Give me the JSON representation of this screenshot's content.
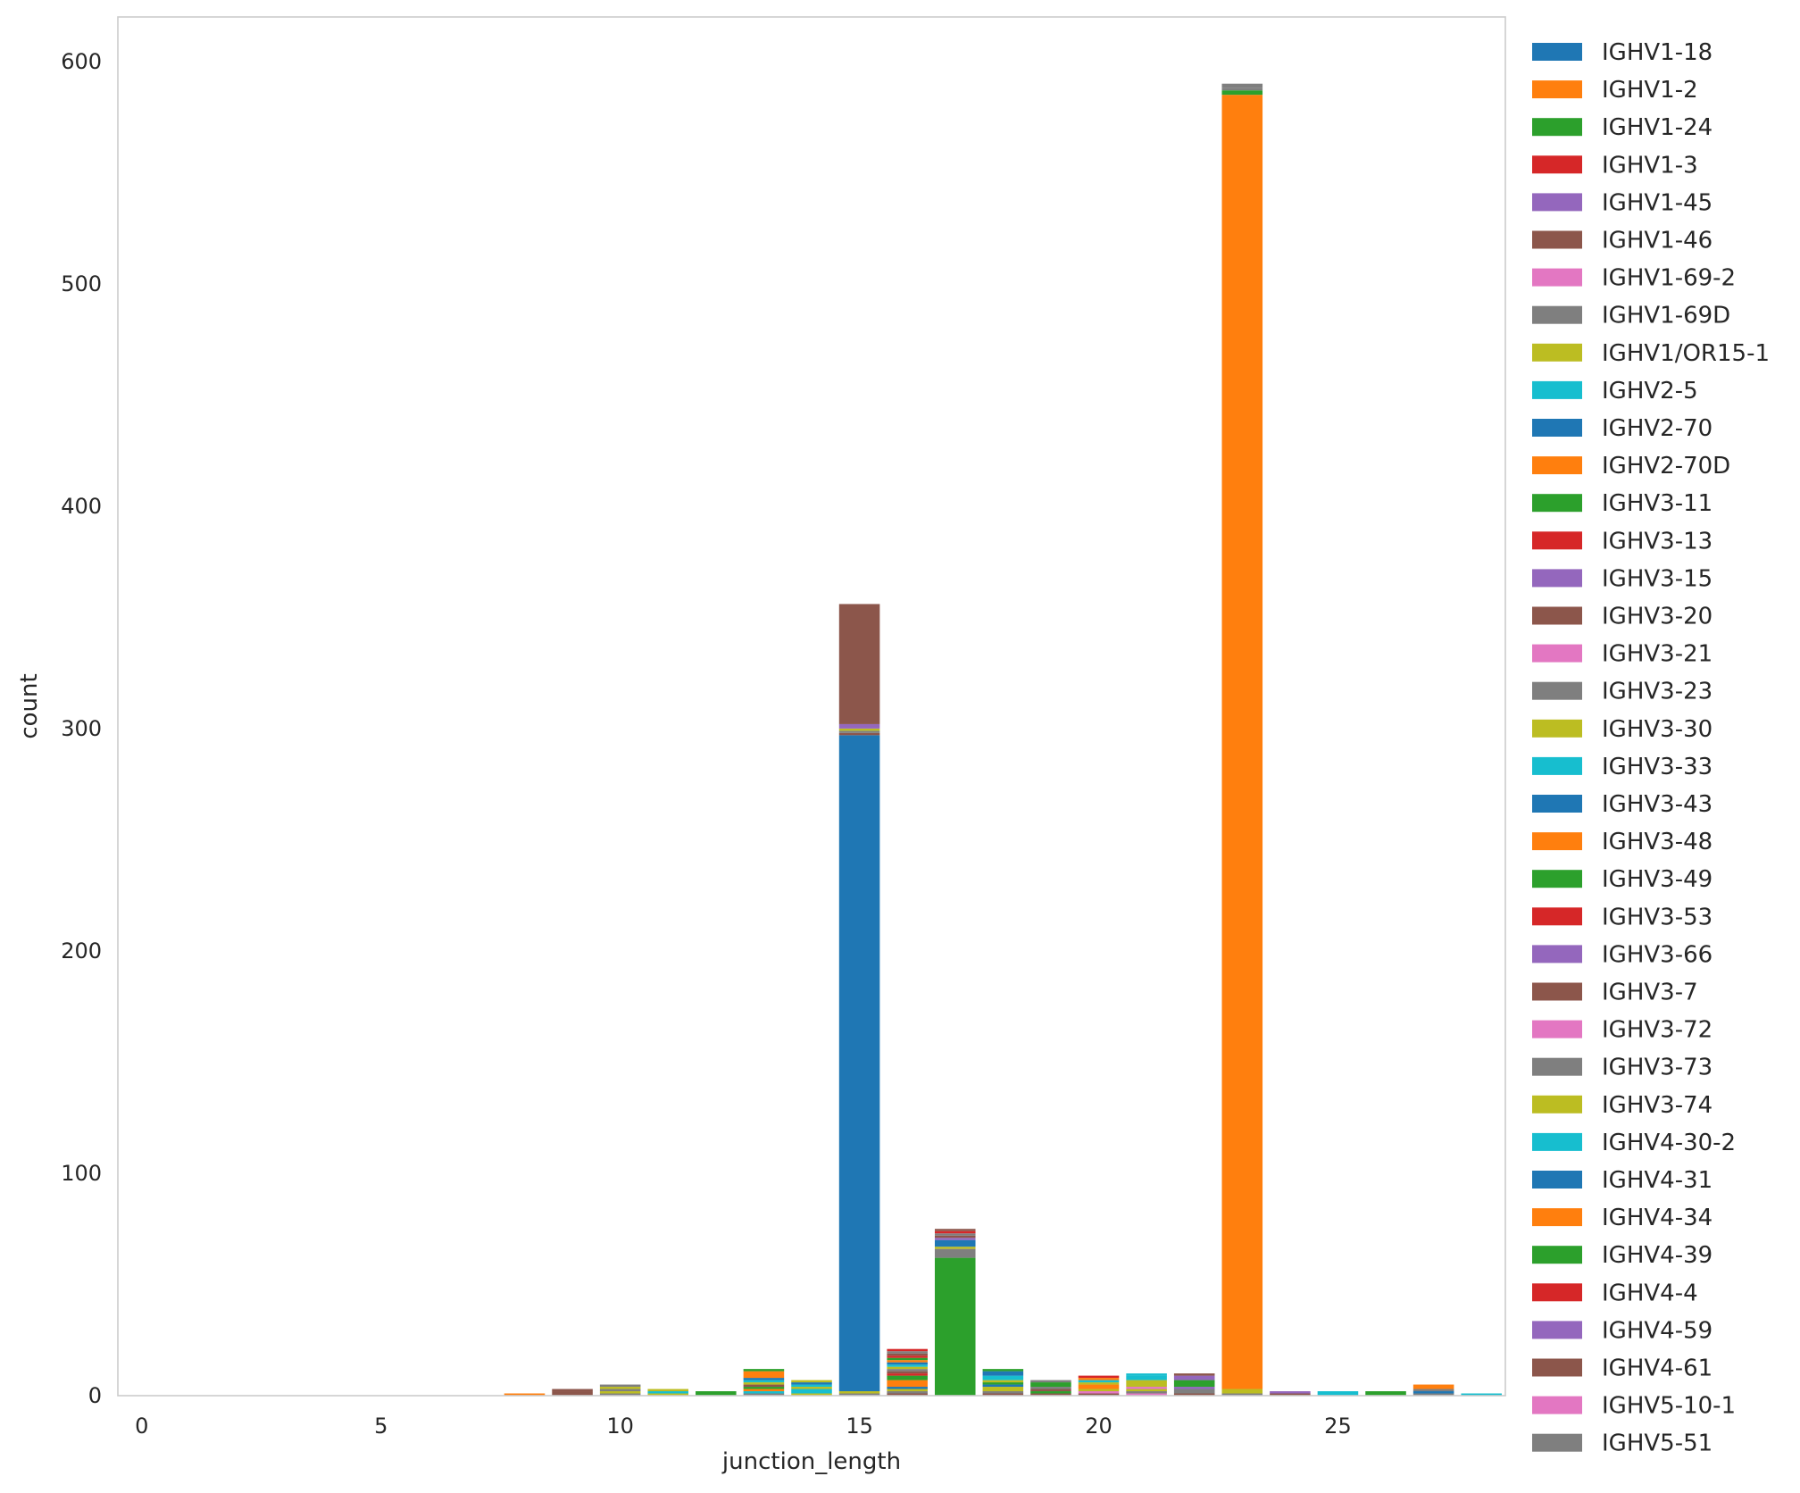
{
  "chart_data": {
    "type": "bar",
    "stacked": true,
    "title": "",
    "xlabel": "junction_length",
    "ylabel": "count",
    "xlim": [
      -0.5,
      28.5
    ],
    "ylim": [
      0,
      620
    ],
    "x_ticks": [
      0,
      5,
      10,
      15,
      20,
      25
    ],
    "y_ticks": [
      0,
      100,
      200,
      300,
      400,
      500,
      600
    ],
    "grid": false,
    "legend_position": "right",
    "x": [
      8,
      9,
      10,
      11,
      12,
      13,
      14,
      15,
      16,
      17,
      18,
      19,
      20,
      21,
      22,
      23,
      24,
      25,
      26,
      27,
      28
    ],
    "series": [
      {
        "name": "IGHV1-18",
        "color": "#1f77b4",
        "values": [
          0,
          0,
          0,
          0,
          0,
          0,
          0,
          0,
          0,
          0,
          0,
          0,
          0,
          0,
          0,
          0,
          0,
          0,
          0,
          0,
          0
        ]
      },
      {
        "name": "IGHV1-2",
        "color": "#ff7f0e",
        "values": [
          0,
          0,
          0,
          0,
          0,
          0,
          0,
          0,
          0,
          0,
          0,
          0,
          0,
          0,
          0,
          0,
          0,
          0,
          0,
          0,
          0
        ]
      },
      {
        "name": "IGHV1-24",
        "color": "#2ca02c",
        "values": [
          0,
          0,
          0,
          0,
          0,
          0,
          0,
          0,
          0,
          0,
          0,
          0,
          0,
          0,
          0,
          0,
          0,
          0,
          0,
          0,
          0
        ]
      },
      {
        "name": "IGHV1-3",
        "color": "#d62728",
        "values": [
          0,
          0,
          0,
          0,
          0,
          0,
          0,
          0,
          0,
          0,
          0,
          0,
          0,
          0,
          0,
          0,
          0,
          0,
          0,
          0,
          0
        ]
      },
      {
        "name": "IGHV1-45",
        "color": "#9467bd",
        "values": [
          0,
          0,
          0,
          0,
          0,
          0,
          0,
          0,
          0,
          0,
          0,
          0,
          0,
          0,
          0,
          0,
          0,
          0,
          0,
          0,
          0
        ]
      },
      {
        "name": "IGHV1-46",
        "color": "#8c564b",
        "values": [
          0,
          1,
          0,
          0,
          0,
          0,
          0,
          0,
          1,
          0,
          1,
          1,
          1,
          0,
          1,
          0,
          1,
          0,
          0,
          0,
          0
        ]
      },
      {
        "name": "IGHV1-69-2",
        "color": "#e377c2",
        "values": [
          0,
          0,
          0,
          0,
          0,
          0,
          0,
          0,
          0,
          0,
          0,
          0,
          1,
          1,
          0,
          0,
          0,
          0,
          0,
          0,
          0
        ]
      },
      {
        "name": "IGHV1-69D",
        "color": "#7f7f7f",
        "values": [
          0,
          0,
          1,
          0,
          0,
          1,
          0,
          1,
          1,
          0,
          1,
          0,
          0,
          1,
          2,
          1,
          0,
          0,
          0,
          1,
          0
        ]
      },
      {
        "name": "IGHV1/OR15-1",
        "color": "#bcbd22",
        "values": [
          0,
          0,
          1,
          1,
          0,
          0,
          1,
          1,
          1,
          0,
          2,
          0,
          1,
          1,
          0,
          2,
          0,
          0,
          0,
          0,
          0
        ]
      },
      {
        "name": "IGHV2-5",
        "color": "#17becf",
        "values": [
          0,
          0,
          0,
          1,
          0,
          1,
          2,
          0,
          0,
          0,
          0,
          0,
          0,
          0,
          0,
          0,
          0,
          2,
          0,
          0,
          1
        ]
      },
      {
        "name": "IGHV2-70",
        "color": "#1f77b4",
        "values": [
          0,
          0,
          0,
          0,
          0,
          0,
          0,
          295,
          1,
          0,
          1,
          0,
          0,
          0,
          0,
          0,
          0,
          0,
          0,
          1,
          0
        ]
      },
      {
        "name": "IGHV2-70D",
        "color": "#ff7f0e",
        "values": [
          1,
          0,
          0,
          0,
          0,
          1,
          0,
          0,
          3,
          0,
          0,
          0,
          2,
          0,
          0,
          582,
          0,
          0,
          0,
          0,
          0
        ]
      },
      {
        "name": "IGHV3-11",
        "color": "#2ca02c",
        "values": [
          0,
          0,
          0,
          0,
          2,
          1,
          0,
          0,
          2,
          62,
          1,
          1,
          0,
          0,
          0,
          2,
          0,
          0,
          2,
          0,
          0
        ]
      },
      {
        "name": "IGHV3-13",
        "color": "#d62728",
        "values": [
          0,
          0,
          0,
          0,
          0,
          0,
          0,
          0,
          1,
          0,
          0,
          0,
          0,
          0,
          0,
          0,
          0,
          0,
          0,
          0,
          0
        ]
      },
      {
        "name": "IGHV3-15",
        "color": "#9467bd",
        "values": [
          0,
          0,
          0,
          0,
          0,
          0,
          0,
          0,
          0,
          0,
          0,
          0,
          0,
          0,
          1,
          0,
          1,
          0,
          0,
          0,
          0
        ]
      },
      {
        "name": "IGHV3-20",
        "color": "#8c564b",
        "values": [
          0,
          1,
          0,
          0,
          0,
          1,
          0,
          1,
          1,
          0,
          0,
          1,
          0,
          0,
          0,
          0,
          0,
          0,
          0,
          0,
          0
        ]
      },
      {
        "name": "IGHV3-21",
        "color": "#e377c2",
        "values": [
          0,
          0,
          0,
          0,
          0,
          0,
          0,
          0,
          0,
          0,
          0,
          0,
          0,
          1,
          0,
          0,
          0,
          0,
          0,
          0,
          0
        ]
      },
      {
        "name": "IGHV3-23",
        "color": "#7f7f7f",
        "values": [
          0,
          0,
          1,
          0,
          0,
          0,
          0,
          1,
          1,
          4,
          0,
          1,
          0,
          0,
          0,
          0,
          0,
          0,
          0,
          1,
          0
        ]
      },
      {
        "name": "IGHV3-30",
        "color": "#bcbd22",
        "values": [
          0,
          0,
          1,
          1,
          0,
          1,
          1,
          1,
          1,
          1,
          1,
          0,
          1,
          3,
          0,
          0,
          0,
          0,
          0,
          0,
          0
        ]
      },
      {
        "name": "IGHV3-33",
        "color": "#17becf",
        "values": [
          0,
          0,
          0,
          0,
          0,
          1,
          1,
          0,
          1,
          0,
          2,
          0,
          1,
          2,
          0,
          0,
          0,
          0,
          0,
          0,
          0
        ]
      },
      {
        "name": "IGHV3-43",
        "color": "#1f77b4",
        "values": [
          0,
          0,
          0,
          0,
          0,
          1,
          1,
          0,
          1,
          3,
          2,
          0,
          0,
          0,
          0,
          0,
          0,
          0,
          0,
          0,
          0
        ]
      },
      {
        "name": "IGHV3-48",
        "color": "#ff7f0e",
        "values": [
          0,
          0,
          0,
          0,
          0,
          3,
          0,
          0,
          1,
          0,
          0,
          0,
          1,
          0,
          0,
          0,
          0,
          0,
          0,
          2,
          0
        ]
      },
      {
        "name": "IGHV3-49",
        "color": "#2ca02c",
        "values": [
          0,
          0,
          0,
          0,
          0,
          1,
          0,
          0,
          1,
          0,
          1,
          2,
          0,
          0,
          3,
          0,
          0,
          0,
          0,
          0,
          0
        ]
      },
      {
        "name": "IGHV3-53",
        "color": "#d62728",
        "values": [
          0,
          0,
          0,
          0,
          0,
          0,
          0,
          0,
          1,
          0,
          0,
          0,
          1,
          0,
          0,
          0,
          0,
          0,
          0,
          0,
          0
        ]
      },
      {
        "name": "IGHV3-66",
        "color": "#9467bd",
        "values": [
          0,
          0,
          0,
          0,
          0,
          0,
          0,
          2,
          0,
          1,
          0,
          0,
          0,
          0,
          2,
          0,
          0,
          0,
          0,
          0,
          0
        ]
      },
      {
        "name": "IGHV3-7",
        "color": "#8c564b",
        "values": [
          0,
          1,
          0,
          0,
          0,
          0,
          0,
          54,
          1,
          1,
          0,
          0,
          0,
          0,
          1,
          0,
          0,
          0,
          0,
          0,
          0
        ]
      },
      {
        "name": "IGHV3-72",
        "color": "#e377c2",
        "values": [
          0,
          0,
          0,
          0,
          0,
          0,
          0,
          0,
          0,
          0,
          0,
          0,
          0,
          0,
          0,
          0,
          0,
          0,
          0,
          0,
          0
        ]
      },
      {
        "name": "IGHV3-73",
        "color": "#7f7f7f",
        "values": [
          0,
          0,
          1,
          0,
          0,
          0,
          0,
          0,
          1,
          1,
          0,
          1,
          0,
          0,
          0,
          1,
          0,
          0,
          0,
          0,
          0
        ]
      },
      {
        "name": "IGHV3-74",
        "color": "#bcbd22",
        "values": [
          0,
          0,
          0,
          0,
          0,
          0,
          1,
          0,
          0,
          0,
          0,
          0,
          0,
          0,
          0,
          0,
          0,
          0,
          0,
          0,
          0
        ]
      },
      {
        "name": "IGHV4-30-2",
        "color": "#17becf",
        "values": [
          0,
          0,
          0,
          0,
          0,
          0,
          0,
          0,
          0,
          0,
          0,
          0,
          0,
          1,
          0,
          0,
          0,
          0,
          0,
          0,
          0
        ]
      },
      {
        "name": "IGHV4-31",
        "color": "#1f77b4",
        "values": [
          0,
          0,
          0,
          0,
          0,
          0,
          0,
          0,
          0,
          0,
          0,
          0,
          0,
          0,
          0,
          0,
          0,
          0,
          0,
          0,
          0
        ]
      },
      {
        "name": "IGHV4-34",
        "color": "#ff7f0e",
        "values": [
          0,
          0,
          0,
          0,
          0,
          0,
          0,
          0,
          0,
          0,
          0,
          0,
          0,
          0,
          0,
          0,
          0,
          0,
          0,
          0,
          0
        ]
      },
      {
        "name": "IGHV4-39",
        "color": "#2ca02c",
        "values": [
          0,
          0,
          0,
          0,
          0,
          0,
          0,
          0,
          0,
          0,
          0,
          0,
          0,
          0,
          0,
          0,
          0,
          0,
          0,
          0,
          0
        ]
      },
      {
        "name": "IGHV4-4",
        "color": "#d62728",
        "values": [
          0,
          0,
          0,
          0,
          0,
          0,
          0,
          0,
          1,
          1,
          0,
          0,
          0,
          0,
          0,
          0,
          0,
          0,
          0,
          0,
          0
        ]
      },
      {
        "name": "IGHV4-59",
        "color": "#9467bd",
        "values": [
          0,
          0,
          0,
          0,
          0,
          0,
          0,
          0,
          0,
          0,
          0,
          0,
          0,
          0,
          0,
          0,
          0,
          0,
          0,
          0,
          0
        ]
      },
      {
        "name": "IGHV4-61",
        "color": "#8c564b",
        "values": [
          0,
          0,
          0,
          0,
          0,
          0,
          0,
          0,
          0,
          1,
          0,
          0,
          0,
          0,
          0,
          0,
          0,
          0,
          0,
          0,
          0
        ]
      },
      {
        "name": "IGHV5-10-1",
        "color": "#e377c2",
        "values": [
          0,
          0,
          0,
          0,
          0,
          0,
          0,
          0,
          0,
          0,
          0,
          0,
          0,
          0,
          0,
          0,
          0,
          0,
          0,
          0,
          0
        ]
      },
      {
        "name": "IGHV5-51",
        "color": "#7f7f7f",
        "values": [
          0,
          0,
          0,
          0,
          0,
          0,
          0,
          0,
          0,
          0,
          0,
          0,
          0,
          0,
          0,
          2,
          0,
          0,
          0,
          0,
          0
        ]
      }
    ]
  }
}
